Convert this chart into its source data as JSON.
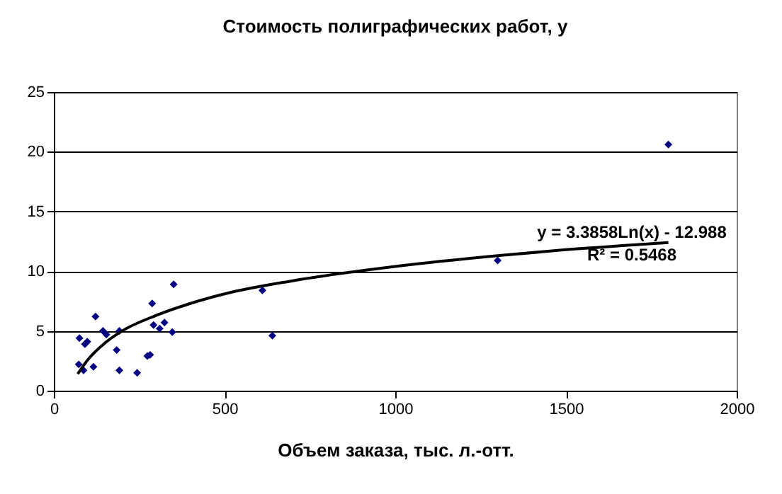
{
  "chart_data": {
    "type": "scatter",
    "title": "Стоимость полиграфических работ, у",
    "xlabel": "Объем заказа, тыс. л.-отт.",
    "annotations": [
      "y = 3.3858Ln(x) - 12.988",
      "R² = 0.5468"
    ],
    "xlim": [
      0,
      2000
    ],
    "xticks": [
      0,
      500,
      1000,
      1500,
      2000
    ],
    "ylim": [
      0,
      25
    ],
    "yticks": [
      0,
      5,
      10,
      15,
      20,
      25
    ],
    "grid": "y",
    "marker": "diamond",
    "series": [
      {
        "type": "scatter",
        "color": "#000080",
        "x": [
          75,
          98,
          91,
          73,
          116,
          87,
          122,
          144,
          154,
          192,
          184,
          192,
          244,
          274,
          282,
          288,
          292,
          310,
          324,
          351,
          347,
          611,
          640,
          1300,
          1800
        ],
        "values": [
          4.4,
          4.1,
          3.9,
          2.2,
          2.0,
          1.7,
          6.2,
          5.0,
          4.7,
          5.0,
          3.4,
          1.7,
          1.5,
          2.9,
          3.0,
          7.3,
          5.5,
          5.2,
          5.7,
          8.9,
          4.9,
          8.4,
          4.6,
          10.9,
          20.6
        ]
      },
      {
        "type": "line",
        "color": "#000000",
        "marker": "none",
        "x": [
          70,
          100,
          150,
          200,
          300,
          400,
          500,
          700,
          1000,
          1300,
          1500,
          1800
        ],
        "values": [
          1.4,
          2.6,
          4.0,
          5.0,
          6.3,
          7.3,
          8.1,
          9.2,
          10.4,
          11.3,
          11.8,
          12.4
        ]
      }
    ]
  }
}
